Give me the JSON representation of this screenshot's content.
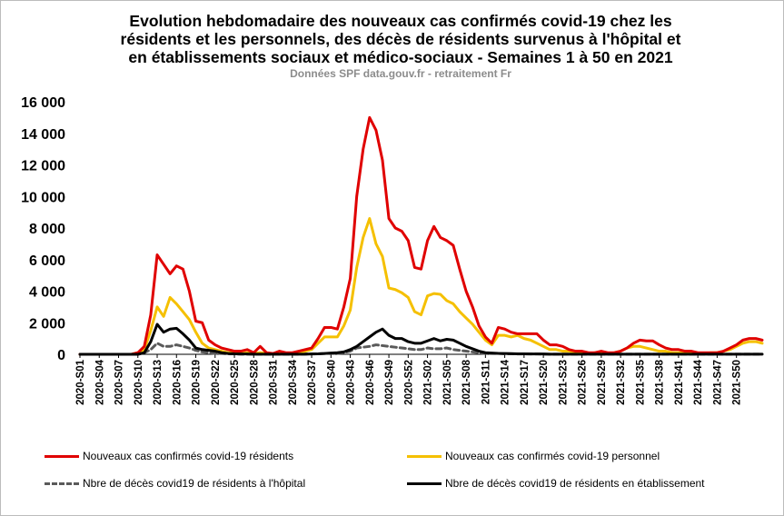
{
  "chart_data": {
    "type": "line",
    "title_lines": [
      "Evolution hebdomadaire des nouveaux cas confirmés covid-19 chez les",
      "résidents et les personnels, des décès de résidents survenus à l'hôpital et",
      "en établissements sociaux et médico-sociaux - Semaines 1 à 50 en 2021"
    ],
    "subtitle": "Données SPF data.gouv.fr - retraitement Fr",
    "xlabel": "",
    "ylabel": "",
    "ylim": [
      0,
      16000
    ],
    "yticks": [
      0,
      2000,
      4000,
      6000,
      8000,
      10000,
      12000,
      14000,
      16000
    ],
    "ytick_labels": [
      "0",
      "2 000",
      "4 000",
      "6 000",
      "8 000",
      "10 000",
      "12 000",
      "14 000",
      "16 000"
    ],
    "x_tick_labels": [
      "2020-S01",
      "2020-S04",
      "2020-S07",
      "2020-S10",
      "2020-S13",
      "2020-S16",
      "2020-S19",
      "2020-S22",
      "2020-S25",
      "2020-S28",
      "2020-S31",
      "2020-S34",
      "2020-S37",
      "2020-S40",
      "2020-S43",
      "2020-S46",
      "2020-S49",
      "2020-S52",
      "2021-S02",
      "2021-S05",
      "2021-S08",
      "2021-S11",
      "2021-S14",
      "2021-S17",
      "2021-S20",
      "2021-S23",
      "2021-S26",
      "2021-S29",
      "2021-S32",
      "2021-S35",
      "2021-S38",
      "2021-S41",
      "2021-S44",
      "2021-S47",
      "2021-S50"
    ],
    "grid": false,
    "legend_position": "bottom",
    "series": [
      {
        "name": "Nouveaux cas confirmés covid-19 résidents",
        "color": "#e00000",
        "style": "solid",
        "values": [
          0,
          0,
          0,
          0,
          0,
          0,
          0,
          0,
          0,
          100,
          500,
          2500,
          6300,
          5700,
          5100,
          5600,
          5400,
          4000,
          2100,
          2000,
          900,
          600,
          400,
          300,
          200,
          200,
          300,
          100,
          500,
          100,
          50,
          200,
          100,
          100,
          200,
          300,
          400,
          1000,
          1700,
          1700,
          1600,
          3000,
          4800,
          10000,
          13000,
          15000,
          14200,
          12300,
          8600,
          8000,
          7800,
          7200,
          5500,
          5400,
          7200,
          8100,
          7400,
          7200,
          6900,
          5400,
          4000,
          3000,
          1800,
          1100,
          700,
          1700,
          1600,
          1400,
          1300,
          1300,
          1300,
          1300,
          900,
          600,
          600,
          500,
          300,
          200,
          200,
          100,
          100,
          200,
          100,
          100,
          200,
          400,
          700,
          900,
          850,
          850,
          600,
          400,
          300,
          300,
          200,
          200,
          100,
          100,
          100,
          100,
          200,
          400,
          600,
          900,
          1000,
          1000,
          900
        ]
      },
      {
        "name": "Nouveaux cas confirmés covid-19 personnel",
        "color": "#f5c000",
        "style": "solid",
        "values": [
          0,
          0,
          0,
          0,
          0,
          0,
          0,
          0,
          0,
          100,
          300,
          1500,
          3000,
          2400,
          3600,
          3200,
          2700,
          2200,
          1400,
          700,
          400,
          300,
          200,
          100,
          100,
          50,
          100,
          50,
          100,
          50,
          50,
          100,
          50,
          50,
          100,
          200,
          300,
          700,
          1100,
          1100,
          1100,
          1800,
          2800,
          5500,
          7400,
          8600,
          7000,
          6200,
          4200,
          4100,
          3900,
          3600,
          2700,
          2500,
          3700,
          3850,
          3800,
          3400,
          3200,
          2700,
          2300,
          1900,
          1400,
          900,
          600,
          1200,
          1200,
          1100,
          1200,
          1000,
          900,
          700,
          500,
          300,
          300,
          200,
          200,
          100,
          100,
          50,
          100,
          50,
          50,
          100,
          200,
          400,
          500,
          500,
          400,
          300,
          200,
          200,
          100,
          100,
          100,
          100,
          50,
          50,
          100,
          100,
          200,
          300,
          500,
          700,
          800,
          800,
          700
        ]
      },
      {
        "name": "Nbre de décès covid19 de résidents à l'hôpital",
        "color": "#5a5a5a",
        "style": "dashed",
        "values": [
          0,
          0,
          0,
          0,
          0,
          0,
          0,
          0,
          0,
          0,
          100,
          300,
          700,
          500,
          500,
          600,
          500,
          400,
          250,
          150,
          100,
          50,
          50,
          30,
          20,
          10,
          10,
          10,
          10,
          10,
          10,
          10,
          10,
          10,
          10,
          20,
          20,
          30,
          50,
          50,
          50,
          100,
          200,
          400,
          450,
          500,
          600,
          550,
          500,
          450,
          400,
          350,
          300,
          300,
          400,
          350,
          350,
          400,
          300,
          250,
          200,
          150,
          100,
          50,
          50,
          50,
          30,
          30,
          20,
          20,
          20,
          20,
          10,
          10,
          10,
          10,
          10,
          10,
          10,
          10,
          10,
          10,
          10,
          10,
          10,
          10,
          10,
          10,
          10,
          10,
          10,
          10,
          10,
          10,
          10,
          10,
          10,
          10,
          10,
          10,
          10,
          10,
          10,
          10,
          10,
          10,
          10
        ]
      },
      {
        "name": "Nbre de décès covid19 de résidents en établissement",
        "color": "#000000",
        "style": "solid",
        "values": [
          0,
          0,
          0,
          0,
          0,
          0,
          0,
          0,
          0,
          0,
          100,
          800,
          1900,
          1400,
          1600,
          1650,
          1300,
          900,
          400,
          300,
          250,
          200,
          100,
          50,
          30,
          20,
          20,
          10,
          10,
          10,
          10,
          10,
          10,
          10,
          10,
          10,
          20,
          30,
          50,
          80,
          100,
          150,
          300,
          500,
          800,
          1100,
          1400,
          1600,
          1200,
          1000,
          1000,
          800,
          700,
          700,
          850,
          1000,
          850,
          950,
          900,
          700,
          500,
          350,
          200,
          100,
          80,
          60,
          50,
          40,
          30,
          30,
          20,
          20,
          20,
          10,
          10,
          10,
          10,
          10,
          10,
          10,
          10,
          10,
          10,
          10,
          10,
          10,
          10,
          10,
          10,
          10,
          10,
          10,
          10,
          10,
          10,
          10,
          10,
          10,
          10,
          10,
          10,
          10,
          10,
          10,
          10,
          10,
          10
        ]
      }
    ]
  }
}
